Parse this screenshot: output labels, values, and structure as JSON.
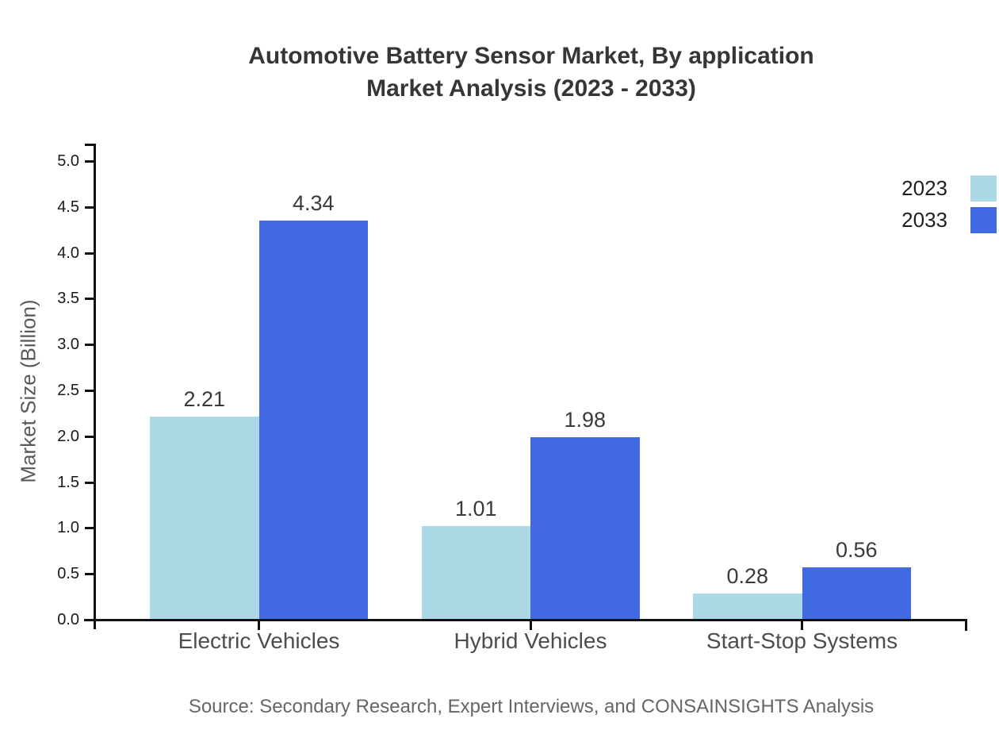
{
  "title": {
    "line1": "Automotive Battery Sensor Market, By application",
    "line2": "Market Analysis (2023 - 2033)"
  },
  "chart_data": {
    "type": "bar",
    "title": "Automotive Battery Sensor Market, By application Market Analysis (2023 - 2033)",
    "categories": [
      "Electric Vehicles",
      "Hybrid Vehicles",
      "Start-Stop Systems"
    ],
    "series": [
      {
        "name": "2023",
        "color": "#ADD8E6",
        "values": [
          2.21,
          1.01,
          0.28
        ]
      },
      {
        "name": "2033",
        "color": "#4169E1",
        "values": [
          4.34,
          1.98,
          0.56
        ]
      }
    ],
    "xlabel": "",
    "ylabel": "Market Size (Billion)",
    "ylim": [
      0,
      5
    ],
    "ytick_step": 0.5,
    "ytick_decimals": 1,
    "value_label_decimals": 2,
    "grid": false,
    "legend_position": "top-right"
  },
  "colors": {
    "axis": "#111111",
    "series_2023": "#ADD8E6",
    "series_2033": "#4169E1",
    "title_text": "#363636",
    "tick_text": "#1a1a1a",
    "category_text": "#4d4d4d",
    "source_text": "#666666"
  },
  "source_note": "Source: Secondary Research, Expert Interviews, and CONSAINSIGHTS Analysis"
}
